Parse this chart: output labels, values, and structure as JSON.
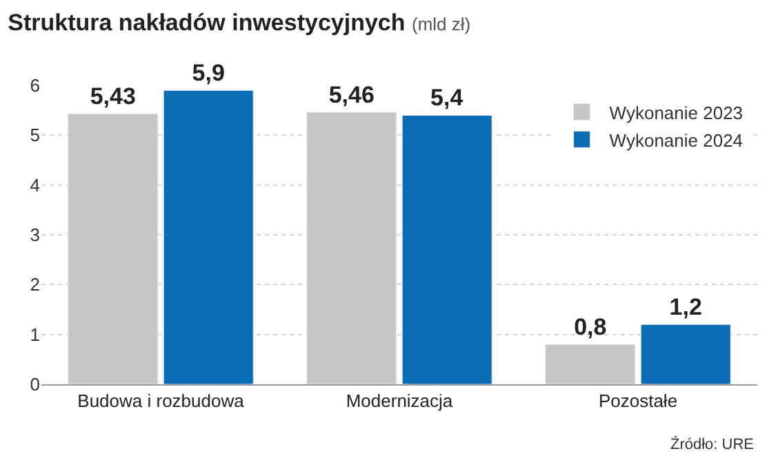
{
  "chart_data": {
    "type": "bar",
    "title": "Struktura nakładów inwestycyjnych",
    "subtitle": "(mld zł)",
    "categories": [
      "Budowa i rozbudowa",
      "Modernizacja",
      "Pozostałe"
    ],
    "series": [
      {
        "name": "Wykonanie 2023",
        "color": "#c6c6c6",
        "values": [
          5.43,
          5.46,
          0.8
        ],
        "value_labels": [
          "5,43",
          "5,46",
          "0,8"
        ]
      },
      {
        "name": "Wykonanie 2024",
        "color": "#0a6db5",
        "values": [
          5.9,
          5.4,
          1.2
        ],
        "value_labels": [
          "5,9",
          "5,4",
          "1,2"
        ]
      }
    ],
    "ylim": [
      0,
      6
    ],
    "yticks": [
      0,
      1,
      2,
      3,
      4,
      5,
      6
    ],
    "grid": "y",
    "legend": "top right",
    "annotations": [
      "Źródło: URE"
    ]
  }
}
